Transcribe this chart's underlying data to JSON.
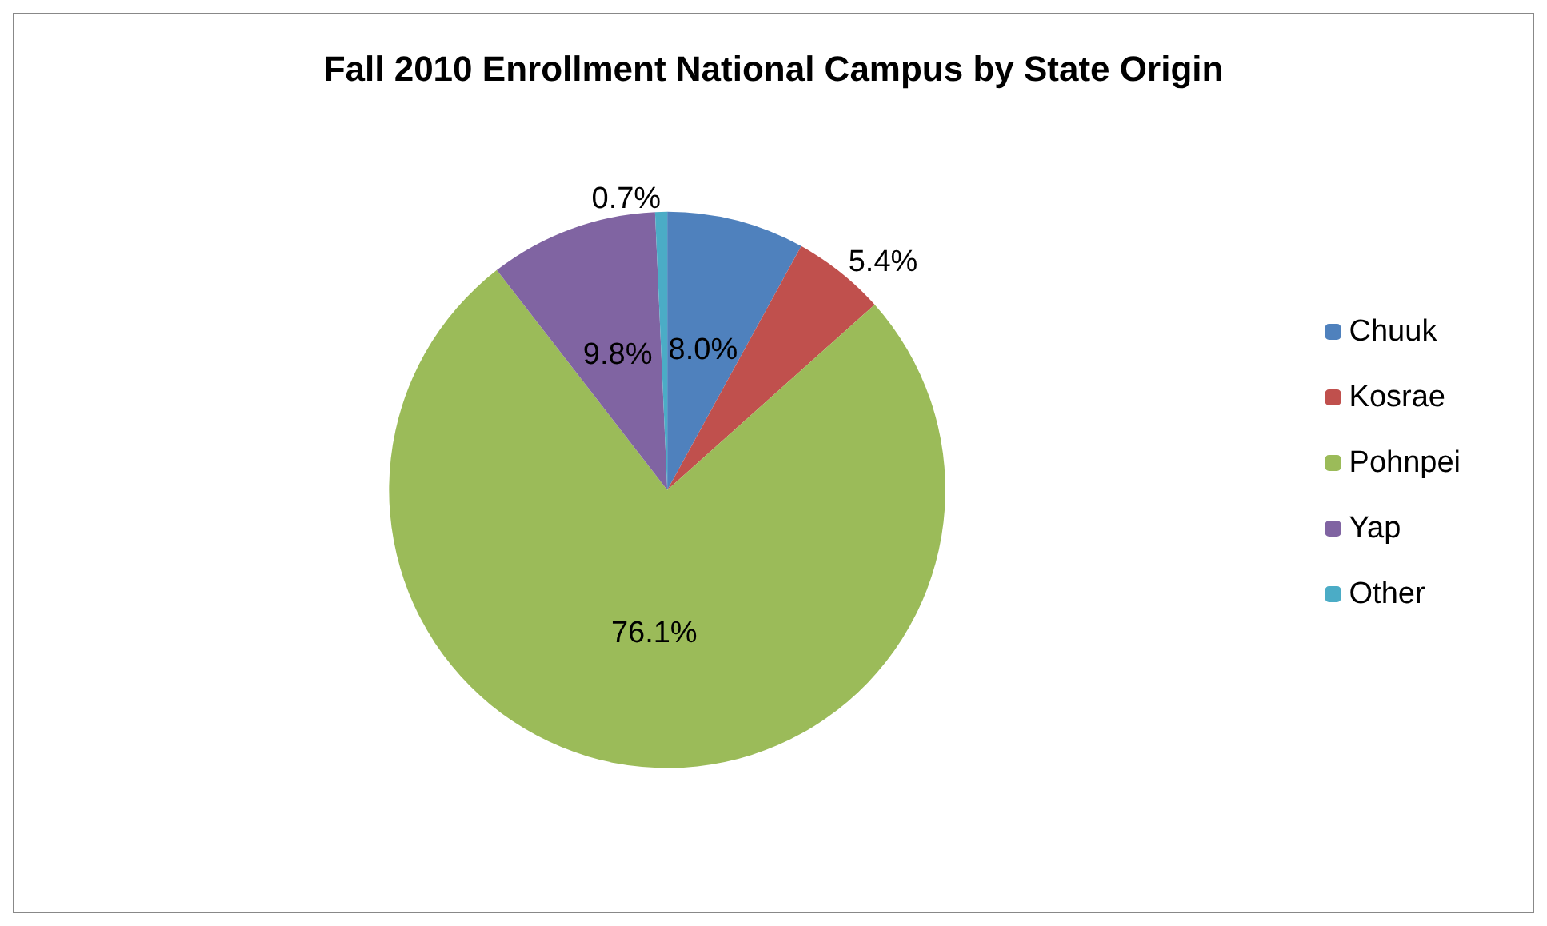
{
  "chart_data": {
    "type": "pie",
    "title": "Fall 2010 Enrollment National Campus by State Origin",
    "categories": [
      "Chuuk",
      "Kosrae",
      "Pohnpei",
      "Yap",
      "Other"
    ],
    "values": [
      8.0,
      5.4,
      76.1,
      9.8,
      0.7
    ],
    "value_labels": [
      "8.0%",
      "5.4%",
      "76.1%",
      "9.8%",
      "0.7%"
    ],
    "colors": [
      "#4f81bd",
      "#c0504d",
      "#9bbb59",
      "#8064a2",
      "#4bacc6"
    ],
    "legend": "right"
  }
}
